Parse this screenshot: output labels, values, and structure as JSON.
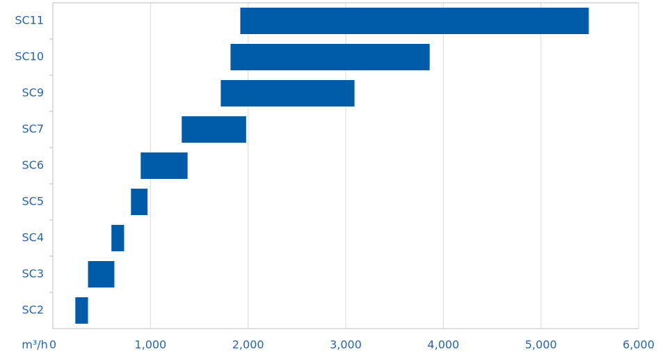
{
  "chart_data": {
    "type": "range-bar",
    "categories": [
      "SC11",
      "SC10",
      "SC9",
      "SC7",
      "SC6",
      "SC5",
      "SC4",
      "SC3",
      "SC2"
    ],
    "ranges": [
      [
        1920,
        5490
      ],
      [
        1820,
        3860
      ],
      [
        1720,
        3090
      ],
      [
        1320,
        1980
      ],
      [
        900,
        1380
      ],
      [
        800,
        970
      ],
      [
        600,
        730
      ],
      [
        360,
        630
      ],
      [
        230,
        360
      ]
    ],
    "color": "#005ba8",
    "x_label": "m³/h",
    "xlim": [
      0,
      6000
    ],
    "xticks": [
      0,
      {
        "value": 1000,
        "label": "1,000"
      },
      {
        "value": 2000,
        "label": "2,000"
      },
      {
        "value": 3000,
        "label": "3,000"
      },
      {
        "value": 4000,
        "label": "4,000"
      },
      {
        "value": 5000,
        "label": "5,000"
      },
      {
        "value": 6000,
        "label": "6,000"
      }
    ],
    "grid": true
  }
}
